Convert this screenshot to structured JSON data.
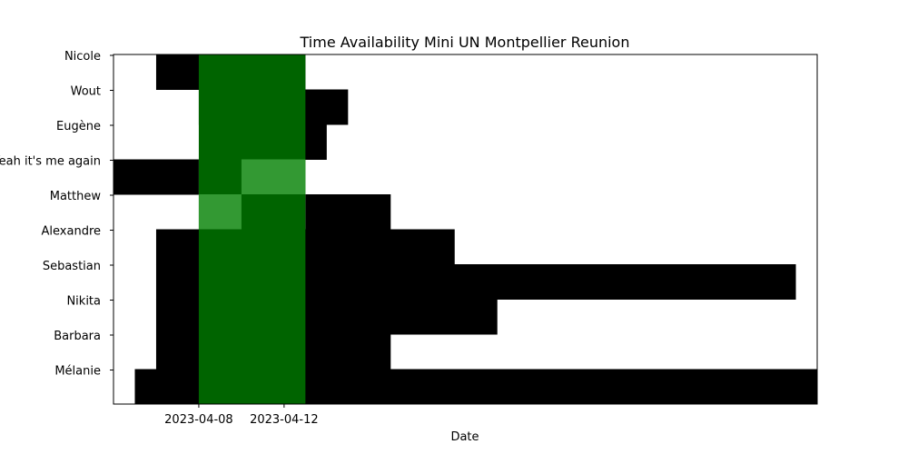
{
  "chart_data": {
    "type": "heatmap",
    "title": "Time Availability Mini UN Montpellier Reunion",
    "xlabel": "Date",
    "ylabel": "",
    "x_start": "2023-04-04",
    "x_end": "2023-05-07",
    "xticks": [
      "2023-04-08",
      "2023-04-12"
    ],
    "rows": [
      "Nicole",
      "Wout",
      "Eugène",
      "Yeah it's me again",
      "Matthew",
      "Alexandre",
      "Sebastian",
      "Nikita",
      "Barbara",
      "Mélanie"
    ],
    "unavailable": [
      [
        "2023-04-06",
        "2023-04-13"
      ],
      [
        "2023-04-08",
        "2023-04-15"
      ],
      [
        "2023-04-12",
        "2023-04-14"
      ],
      [
        "2023-04-04",
        "2023-04-08"
      ],
      [
        "2023-04-13",
        "2023-04-17"
      ],
      [
        "2023-04-06",
        "2023-04-20"
      ],
      [
        "2023-04-06",
        "2023-05-06"
      ],
      [
        "2023-04-06",
        "2023-04-22"
      ],
      [
        "2023-04-06",
        "2023-04-17"
      ],
      [
        "2023-04-10",
        "2023-04-13"
      ],
      [
        "2023-04-05",
        "2023-05-07"
      ]
    ],
    "unavailable_rows": [
      0,
      1,
      2,
      3,
      4,
      5,
      6,
      7,
      8,
      9,
      9
    ],
    "overlap": {
      "start": "2023-04-08",
      "end": "2023-04-13"
    },
    "partial_overlap": [
      {
        "row": 3,
        "start": "2023-04-10",
        "end": "2023-04-13"
      },
      {
        "row": 4,
        "start": "2023-04-08",
        "end": "2023-04-10"
      }
    ],
    "colors": {
      "unavailable": "#000000",
      "overlap": "#006400",
      "partial_overlap": "#339933",
      "background": "#ffffff"
    },
    "grid": false,
    "legend": "none"
  }
}
